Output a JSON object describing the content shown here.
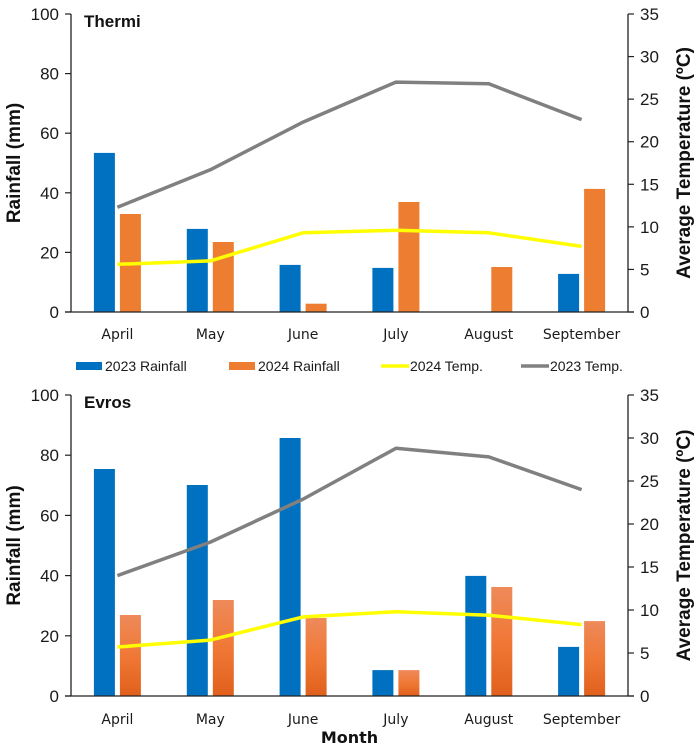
{
  "chart_data": [
    {
      "type": "bar",
      "title": "Thermi",
      "categories": [
        "April",
        "May",
        "June",
        "July",
        "August",
        "September"
      ],
      "xlabel": "",
      "ylabel": "Rainfall (mm)",
      "y2label": "Average Temperature (ºC)",
      "ylim": [
        0,
        100
      ],
      "y2lim": [
        0,
        35
      ],
      "yticks": [
        0,
        20,
        40,
        60,
        80,
        100
      ],
      "y2ticks": [
        0,
        5,
        10,
        15,
        20,
        25,
        30,
        35
      ],
      "grid": false,
      "series": [
        {
          "name": "2023 Rainfall",
          "type": "bar",
          "axis": "left",
          "color": "#0070c0",
          "values": [
            53.4,
            27.9,
            15.8,
            14.8,
            0,
            12.8
          ]
        },
        {
          "name": "2024 Rainfall",
          "type": "bar",
          "axis": "left",
          "color": "#ed7d31",
          "values": [
            32.9,
            23.5,
            2.8,
            36.9,
            15.1,
            41.3
          ]
        },
        {
          "name": "2024 Temp.",
          "type": "line",
          "axis": "right",
          "color": "#ffff00",
          "values": [
            5.6,
            6.0,
            9.3,
            9.6,
            9.3,
            7.7
          ]
        },
        {
          "name": "2023 Temp.",
          "type": "line",
          "axis": "right",
          "color": "#808080",
          "values": [
            12.3,
            16.7,
            22.3,
            27.0,
            26.8,
            22.6
          ]
        }
      ]
    },
    {
      "type": "bar",
      "title": "Evros",
      "categories": [
        "April",
        "May",
        "June",
        "July",
        "August",
        "September"
      ],
      "xlabel": "Month",
      "ylabel": "Rainfall (mm)",
      "y2label": "Average Temperature (ºC)",
      "ylim": [
        0,
        100
      ],
      "y2lim": [
        0,
        35
      ],
      "yticks": [
        0,
        20,
        40,
        60,
        80,
        100
      ],
      "y2ticks": [
        0,
        5,
        10,
        15,
        20,
        25,
        30,
        35
      ],
      "grid": false,
      "series": [
        {
          "name": "2023 Rainfall",
          "type": "bar",
          "axis": "left",
          "color": "#0070c0",
          "values": [
            75.4,
            70.1,
            85.7,
            8.6,
            39.9,
            16.3
          ]
        },
        {
          "name": "2024 Rainfall",
          "type": "bar",
          "axis": "left",
          "color": "#ed7d31",
          "values": [
            26.9,
            31.9,
            25.9,
            8.6,
            36.2,
            24.9
          ]
        },
        {
          "name": "2024 Temp.",
          "type": "line",
          "axis": "right",
          "color": "#ffff00",
          "values": [
            5.7,
            6.5,
            9.2,
            9.8,
            9.4,
            8.3
          ]
        },
        {
          "name": "2023 Temp.",
          "type": "line",
          "axis": "right",
          "color": "#808080",
          "values": [
            14.0,
            17.9,
            22.9,
            28.8,
            27.8,
            24.0
          ]
        }
      ]
    }
  ],
  "legend": {
    "placement": "between-panels",
    "items": [
      {
        "label": "2023 Rainfall",
        "kind": "bar",
        "color": "#0070c0"
      },
      {
        "label": "2024 Rainfall",
        "kind": "bar",
        "color": "#ed7d31"
      },
      {
        "label": "2024 Temp.",
        "kind": "line",
        "color": "#ffff00"
      },
      {
        "label": "2023 Temp.",
        "kind": "line",
        "color": "#808080"
      }
    ]
  }
}
